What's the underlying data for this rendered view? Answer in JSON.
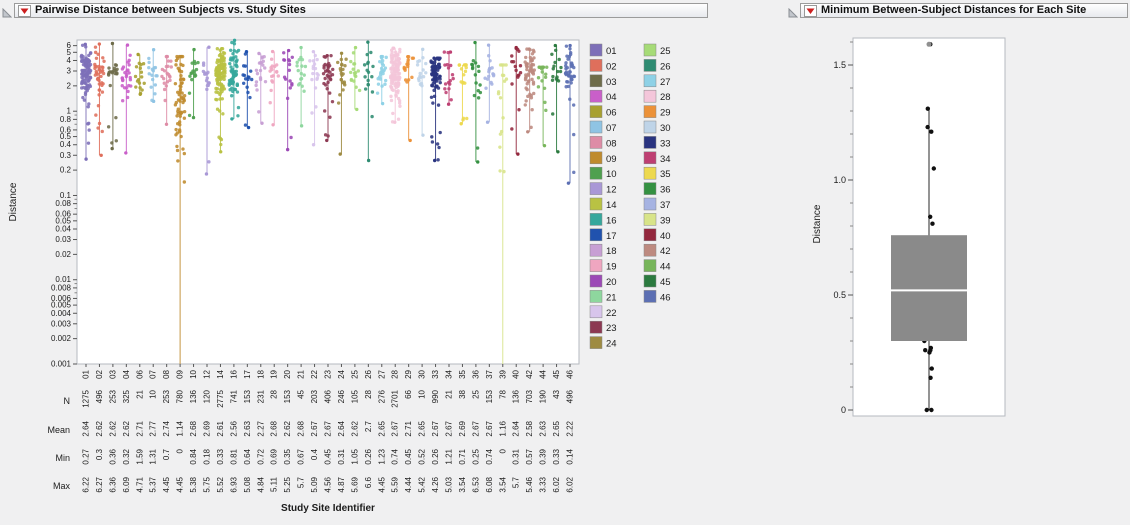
{
  "window": {
    "background": "#f0f0f1"
  },
  "left_panel": {
    "title": "Pairwise Distance between Subjects vs. Study Sites",
    "y_axis_label": "Distance",
    "x_axis_label": "Study Site Identifier",
    "y_tick_labels": [
      "6",
      "5",
      "4",
      "3",
      "2",
      "1",
      "0.8",
      "0.6",
      "0.5",
      "0.4",
      "0.3",
      "0.2",
      "0.1",
      "0.08",
      "0.06",
      "0.05",
      "0.04",
      "0.03",
      "0.02",
      "0.01",
      "0.008",
      "0.006",
      "0.005",
      "0.004",
      "0.003",
      "0.002",
      "0.001"
    ],
    "summary_rows": [
      "N",
      "Mean",
      "Min",
      "Max"
    ]
  },
  "right_panel": {
    "title": "Minimum Between-Subject Distances for Each Site",
    "y_axis_label": "Distance",
    "y_tick_labels": [
      "1.5",
      "1.0",
      "0.5",
      "0"
    ]
  },
  "chart_data": [
    {
      "type": "scatter",
      "title": "Pairwise Distance between Subjects vs. Study Sites",
      "xlabel": "Study Site Identifier",
      "ylabel": "Distance",
      "y_scale": "log",
      "ylim": [
        0.001,
        7
      ],
      "legend_position": "right",
      "categories": [
        "01",
        "02",
        "03",
        "04",
        "06",
        "07",
        "08",
        "09",
        "10",
        "12",
        "14",
        "16",
        "17",
        "18",
        "19",
        "20",
        "21",
        "22",
        "23",
        "24",
        "25",
        "26",
        "27",
        "28",
        "29",
        "30",
        "33",
        "34",
        "35",
        "36",
        "37",
        "39",
        "40",
        "42",
        "44",
        "45",
        "46"
      ],
      "colors": [
        "#7d6fb8",
        "#df6f5c",
        "#6e6c4a",
        "#c95fc9",
        "#a8a030",
        "#8fc4e4",
        "#de8ca6",
        "#bf8b2e",
        "#4fa04f",
        "#a998d6",
        "#b9c243",
        "#35a79c",
        "#2052ae",
        "#c79fd4",
        "#efa6c0",
        "#9c49b6",
        "#8ed79e",
        "#d8c5ec",
        "#8c3852",
        "#9e8b42",
        "#a6db77",
        "#2f8c72",
        "#8ed1e6",
        "#f4c6da",
        "#ec9239",
        "#bfd4e8",
        "#2a3480",
        "#be3f72",
        "#edd94f",
        "#349141",
        "#a6b3e2",
        "#d8e489",
        "#93273d",
        "#bd8a80",
        "#77b55a",
        "#2b7a3f",
        "#5c6fb3"
      ],
      "series": [
        {
          "name": "N",
          "values": [
            1275,
            496,
            253,
            325,
            21,
            10,
            253,
            780,
            136,
            120,
            2775,
            741,
            153,
            231,
            28,
            153,
            45,
            203,
            406,
            246,
            105,
            28,
            276,
            2701,
            66,
            10,
            990,
            21,
            38,
            25,
            153,
            78,
            136,
            703,
            190,
            43,
            496
          ]
        },
        {
          "name": "Mean",
          "values": [
            2.64,
            2.62,
            2.62,
            2.62,
            2.71,
            2.77,
            2.74,
            1.14,
            2.68,
            2.69,
            2.61,
            2.56,
            2.63,
            2.27,
            2.68,
            2.62,
            2.68,
            2.67,
            2.67,
            2.64,
            2.62,
            2.7,
            2.65,
            2.67,
            2.71,
            2.65,
            2.67,
            2.67,
            2.69,
            2.67,
            2.67,
            1.16,
            2.64,
            2.58,
            2.63,
            2.65,
            2.22
          ]
        },
        {
          "name": "Min",
          "values": [
            0.27,
            0.3,
            0.36,
            0.32,
            1.59,
            1.31,
            0.7,
            0,
            0.84,
            0.18,
            0.33,
            0.81,
            0.64,
            0.72,
            0.69,
            0.35,
            0.67,
            0.4,
            0.45,
            0.31,
            1.05,
            0.26,
            1.23,
            0.74,
            0.45,
            0.52,
            0.26,
            1.21,
            0.71,
            0.25,
            0.74,
            0,
            0.31,
            0.57,
            0.39,
            0.33,
            0.14
          ]
        },
        {
          "name": "Max",
          "values": [
            6.22,
            6.27,
            6.36,
            6.09,
            4.71,
            5.37,
            4.45,
            4.45,
            5.38,
            5.75,
            5.52,
            6.93,
            5.08,
            4.84,
            5.11,
            5.25,
            5.7,
            5.09,
            4.56,
            4.87,
            5.69,
            6.6,
            4.45,
            5.59,
            4.44,
            5.42,
            4.26,
            5.03,
            3.54,
            6.53,
            6.08,
            3.54,
            5.7,
            5.46,
            3.33,
            6.02,
            6.02
          ]
        }
      ]
    },
    {
      "type": "box",
      "title": "Minimum Between-Subject Distances for Each Site",
      "ylabel": "Distance",
      "ylim": [
        0,
        1.65
      ],
      "yticks": [
        0,
        0.5,
        1.0,
        1.5
      ],
      "box": {
        "whisker_low": 0,
        "q1": 0.3,
        "median": 0.52,
        "q3": 0.76,
        "whisker_high": 1.31,
        "outliers": [
          1.59
        ]
      },
      "points": [
        0.27,
        0.3,
        0.36,
        0.32,
        1.59,
        1.31,
        0.7,
        0,
        0.84,
        0.18,
        0.33,
        0.81,
        0.64,
        0.72,
        0.69,
        0.35,
        0.67,
        0.4,
        0.45,
        0.31,
        1.05,
        0.26,
        1.23,
        0.74,
        0.45,
        0.52,
        0.26,
        1.21,
        0.71,
        0.25,
        0.74,
        0,
        0.31,
        0.57,
        0.39,
        0.33,
        0.14
      ],
      "box_color": "#8a8a8a",
      "median_color": "#ffffff",
      "point_color": "#101010",
      "outlier_color": "#909090"
    }
  ]
}
